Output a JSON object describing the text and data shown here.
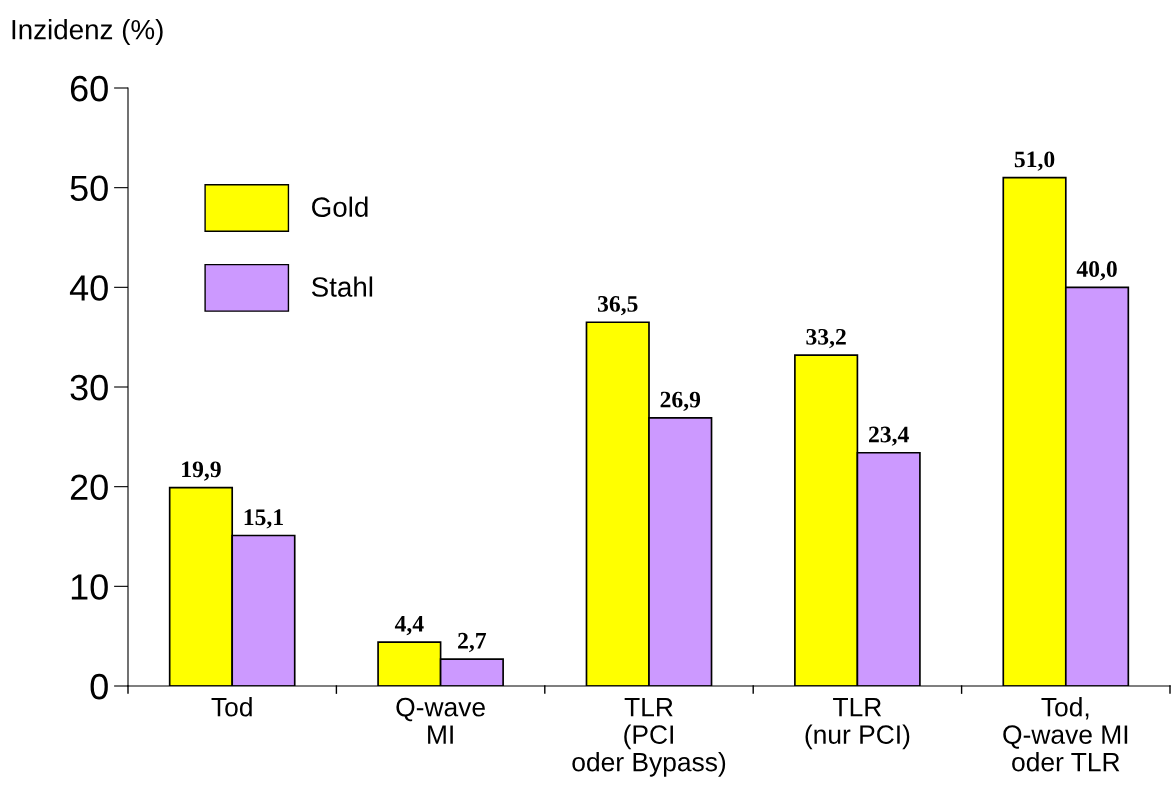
{
  "chart_data": {
    "type": "bar",
    "ylabel": "Inzidenz (%)",
    "categories": [
      "Tod",
      "Q-wave\nMI",
      "TLR\n(PCI\noder Bypass)",
      "TLR\n(nur PCI)",
      "Tod,\nQ-wave MI\noder TLR"
    ],
    "series": [
      {
        "name": "Gold",
        "color": "#ffff00",
        "values": [
          19.9,
          4.4,
          36.5,
          33.2,
          51.0
        ],
        "value_labels": [
          "19,9",
          "4,4",
          "36,5",
          "33,2",
          "51,0"
        ]
      },
      {
        "name": "Stahl",
        "color": "#cc99ff",
        "values": [
          15.1,
          2.7,
          26.9,
          23.4,
          40.0
        ],
        "value_labels": [
          "15,1",
          "2,7",
          "26,9",
          "23,4",
          "40,0"
        ]
      }
    ],
    "ylim": [
      0,
      60
    ],
    "yticks": [
      0,
      10,
      20,
      30,
      40,
      50,
      60
    ],
    "grid": false,
    "legend": "top left"
  }
}
